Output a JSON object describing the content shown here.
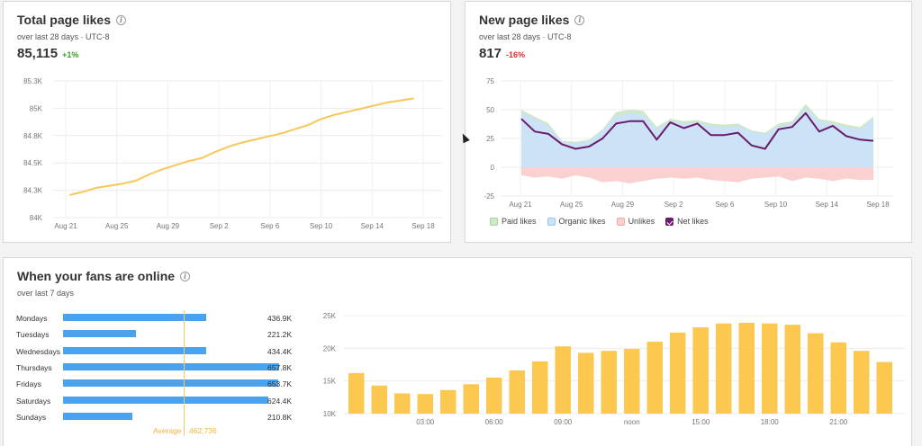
{
  "total_likes": {
    "title": "Total page likes",
    "subtitle": "over last 28 days · UTC-8",
    "value": "85,115",
    "delta": "+1%",
    "delta_color": "#3a9d23",
    "line_color": "#f7c75a",
    "chart_data": {
      "type": "line",
      "x_ticks": [
        "Aug 21",
        "Aug 25",
        "Aug 29",
        "Sep 2",
        "Sep 6",
        "Sep 10",
        "Sep 14",
        "Sep 18"
      ],
      "y_ticks": [
        "84K",
        "84.3K",
        "84.5K",
        "84.8K",
        "85K",
        "85.3K"
      ],
      "ylim": [
        84000,
        85330
      ],
      "xlim": [
        0,
        27
      ],
      "x": [
        0,
        1,
        2,
        3,
        4,
        5,
        6,
        7,
        8,
        9,
        10,
        11,
        12,
        13,
        14,
        15,
        16,
        17,
        18,
        19,
        20,
        21,
        22,
        23,
        24,
        25,
        26
      ],
      "values": [
        84220,
        84250,
        84290,
        84310,
        84330,
        84360,
        84420,
        84470,
        84510,
        84550,
        84580,
        84640,
        84690,
        84730,
        84760,
        84790,
        84820,
        84860,
        84900,
        84960,
        85000,
        85030,
        85060,
        85090,
        85120,
        85140,
        85160
      ]
    }
  },
  "new_likes": {
    "title": "New page likes",
    "subtitle": "over last 28 days · UTC-8",
    "value": "817",
    "delta": "-16%",
    "delta_color": "#d0312d",
    "colors": {
      "paid": "#cfe8c7",
      "organic": "#cce3f7",
      "unlikes": "#fbd0d0",
      "net": "#6b1b6b"
    },
    "legend": [
      {
        "label": "Paid likes",
        "color": "#cfe8c7",
        "border": "#a6d49a"
      },
      {
        "label": "Organic likes",
        "color": "#cce3f7",
        "border": "#9dc8ee"
      },
      {
        "label": "Unlikes",
        "color": "#fbd0d0",
        "border": "#f0a9a9"
      },
      {
        "label": "Net likes",
        "color": "#6b1b6b",
        "border": "#6b1b6b"
      }
    ],
    "chart_data": {
      "type": "area",
      "x_ticks": [
        "Aug 21",
        "Aug 25",
        "Aug 29",
        "Sep 2",
        "Sep 6",
        "Sep 10",
        "Sep 14",
        "Sep 18"
      ],
      "y_ticks": [
        "-25",
        "0",
        "25",
        "50",
        "75"
      ],
      "ylim": [
        -25,
        75
      ],
      "xlim": [
        0,
        27
      ],
      "x": [
        0,
        1,
        2,
        3,
        4,
        5,
        6,
        7,
        8,
        9,
        10,
        11,
        12,
        13,
        14,
        15,
        16,
        17,
        18,
        19,
        20,
        21,
        22,
        23,
        24,
        25,
        26
      ],
      "series": [
        {
          "name": "Paid likes",
          "values": [
            50,
            44,
            38,
            23,
            22,
            24,
            33,
            48,
            50,
            49,
            35,
            42,
            40,
            41,
            38,
            37,
            38,
            32,
            30,
            38,
            40,
            55,
            42,
            40,
            37,
            35,
            44
          ]
        },
        {
          "name": "Organic likes",
          "values": [
            48,
            42,
            36,
            22,
            21,
            23,
            32,
            45,
            47,
            46,
            33,
            40,
            38,
            39,
            36,
            35,
            36,
            31,
            29,
            36,
            38,
            52,
            40,
            38,
            35,
            33,
            42
          ]
        },
        {
          "name": "Unlikes",
          "values": [
            -7,
            -9,
            -8,
            -10,
            -7,
            -9,
            -13,
            -12,
            -14,
            -12,
            -10,
            -9,
            -10,
            -9,
            -11,
            -12,
            -13,
            -10,
            -9,
            -8,
            -12,
            -9,
            -10,
            -12,
            -10,
            -11,
            -11
          ]
        },
        {
          "name": "Net likes",
          "values": [
            42,
            31,
            29,
            20,
            16,
            18,
            25,
            38,
            40,
            40,
            24,
            39,
            34,
            38,
            28,
            28,
            30,
            19,
            16,
            33,
            35,
            47,
            31,
            36,
            27,
            24,
            23
          ]
        }
      ],
      "net_tail": 32
    }
  },
  "fans_online": {
    "title": "When your fans are online",
    "subtitle": "over last 7 days",
    "bar_color": "#4aa3ef",
    "hour_color": "#fcc84f",
    "days": [
      {
        "label": "Mondays",
        "value": 436.9,
        "display": "436.9K"
      },
      {
        "label": "Tuesdays",
        "value": 221.2,
        "display": "221.2K"
      },
      {
        "label": "Wednesdays",
        "value": 434.4,
        "display": "434.4K"
      },
      {
        "label": "Thursdays",
        "value": 657.8,
        "display": "657.8K"
      },
      {
        "label": "Fridays",
        "value": 653.7,
        "display": "653.7K"
      },
      {
        "label": "Saturdays",
        "value": 624.4,
        "display": "624.4K"
      },
      {
        "label": "Sundays",
        "value": 210.8,
        "display": "210.8K"
      }
    ],
    "average_label": "Average",
    "average_value": "462,736",
    "hourly_chart": {
      "type": "bar",
      "y_ticks": [
        "10K",
        "15K",
        "20K",
        "25K"
      ],
      "ylim": [
        10000,
        25000
      ],
      "x_ticks": [
        "03:00",
        "06:00",
        "09:00",
        "noon",
        "15:00",
        "18:00",
        "21:00"
      ],
      "values": [
        16200,
        14300,
        13100,
        13000,
        13600,
        14500,
        15500,
        16600,
        18000,
        20300,
        19300,
        19600,
        19900,
        21000,
        22400,
        23200,
        23800,
        23900,
        23800,
        23600,
        22300,
        20900,
        19600,
        17900
      ]
    }
  }
}
